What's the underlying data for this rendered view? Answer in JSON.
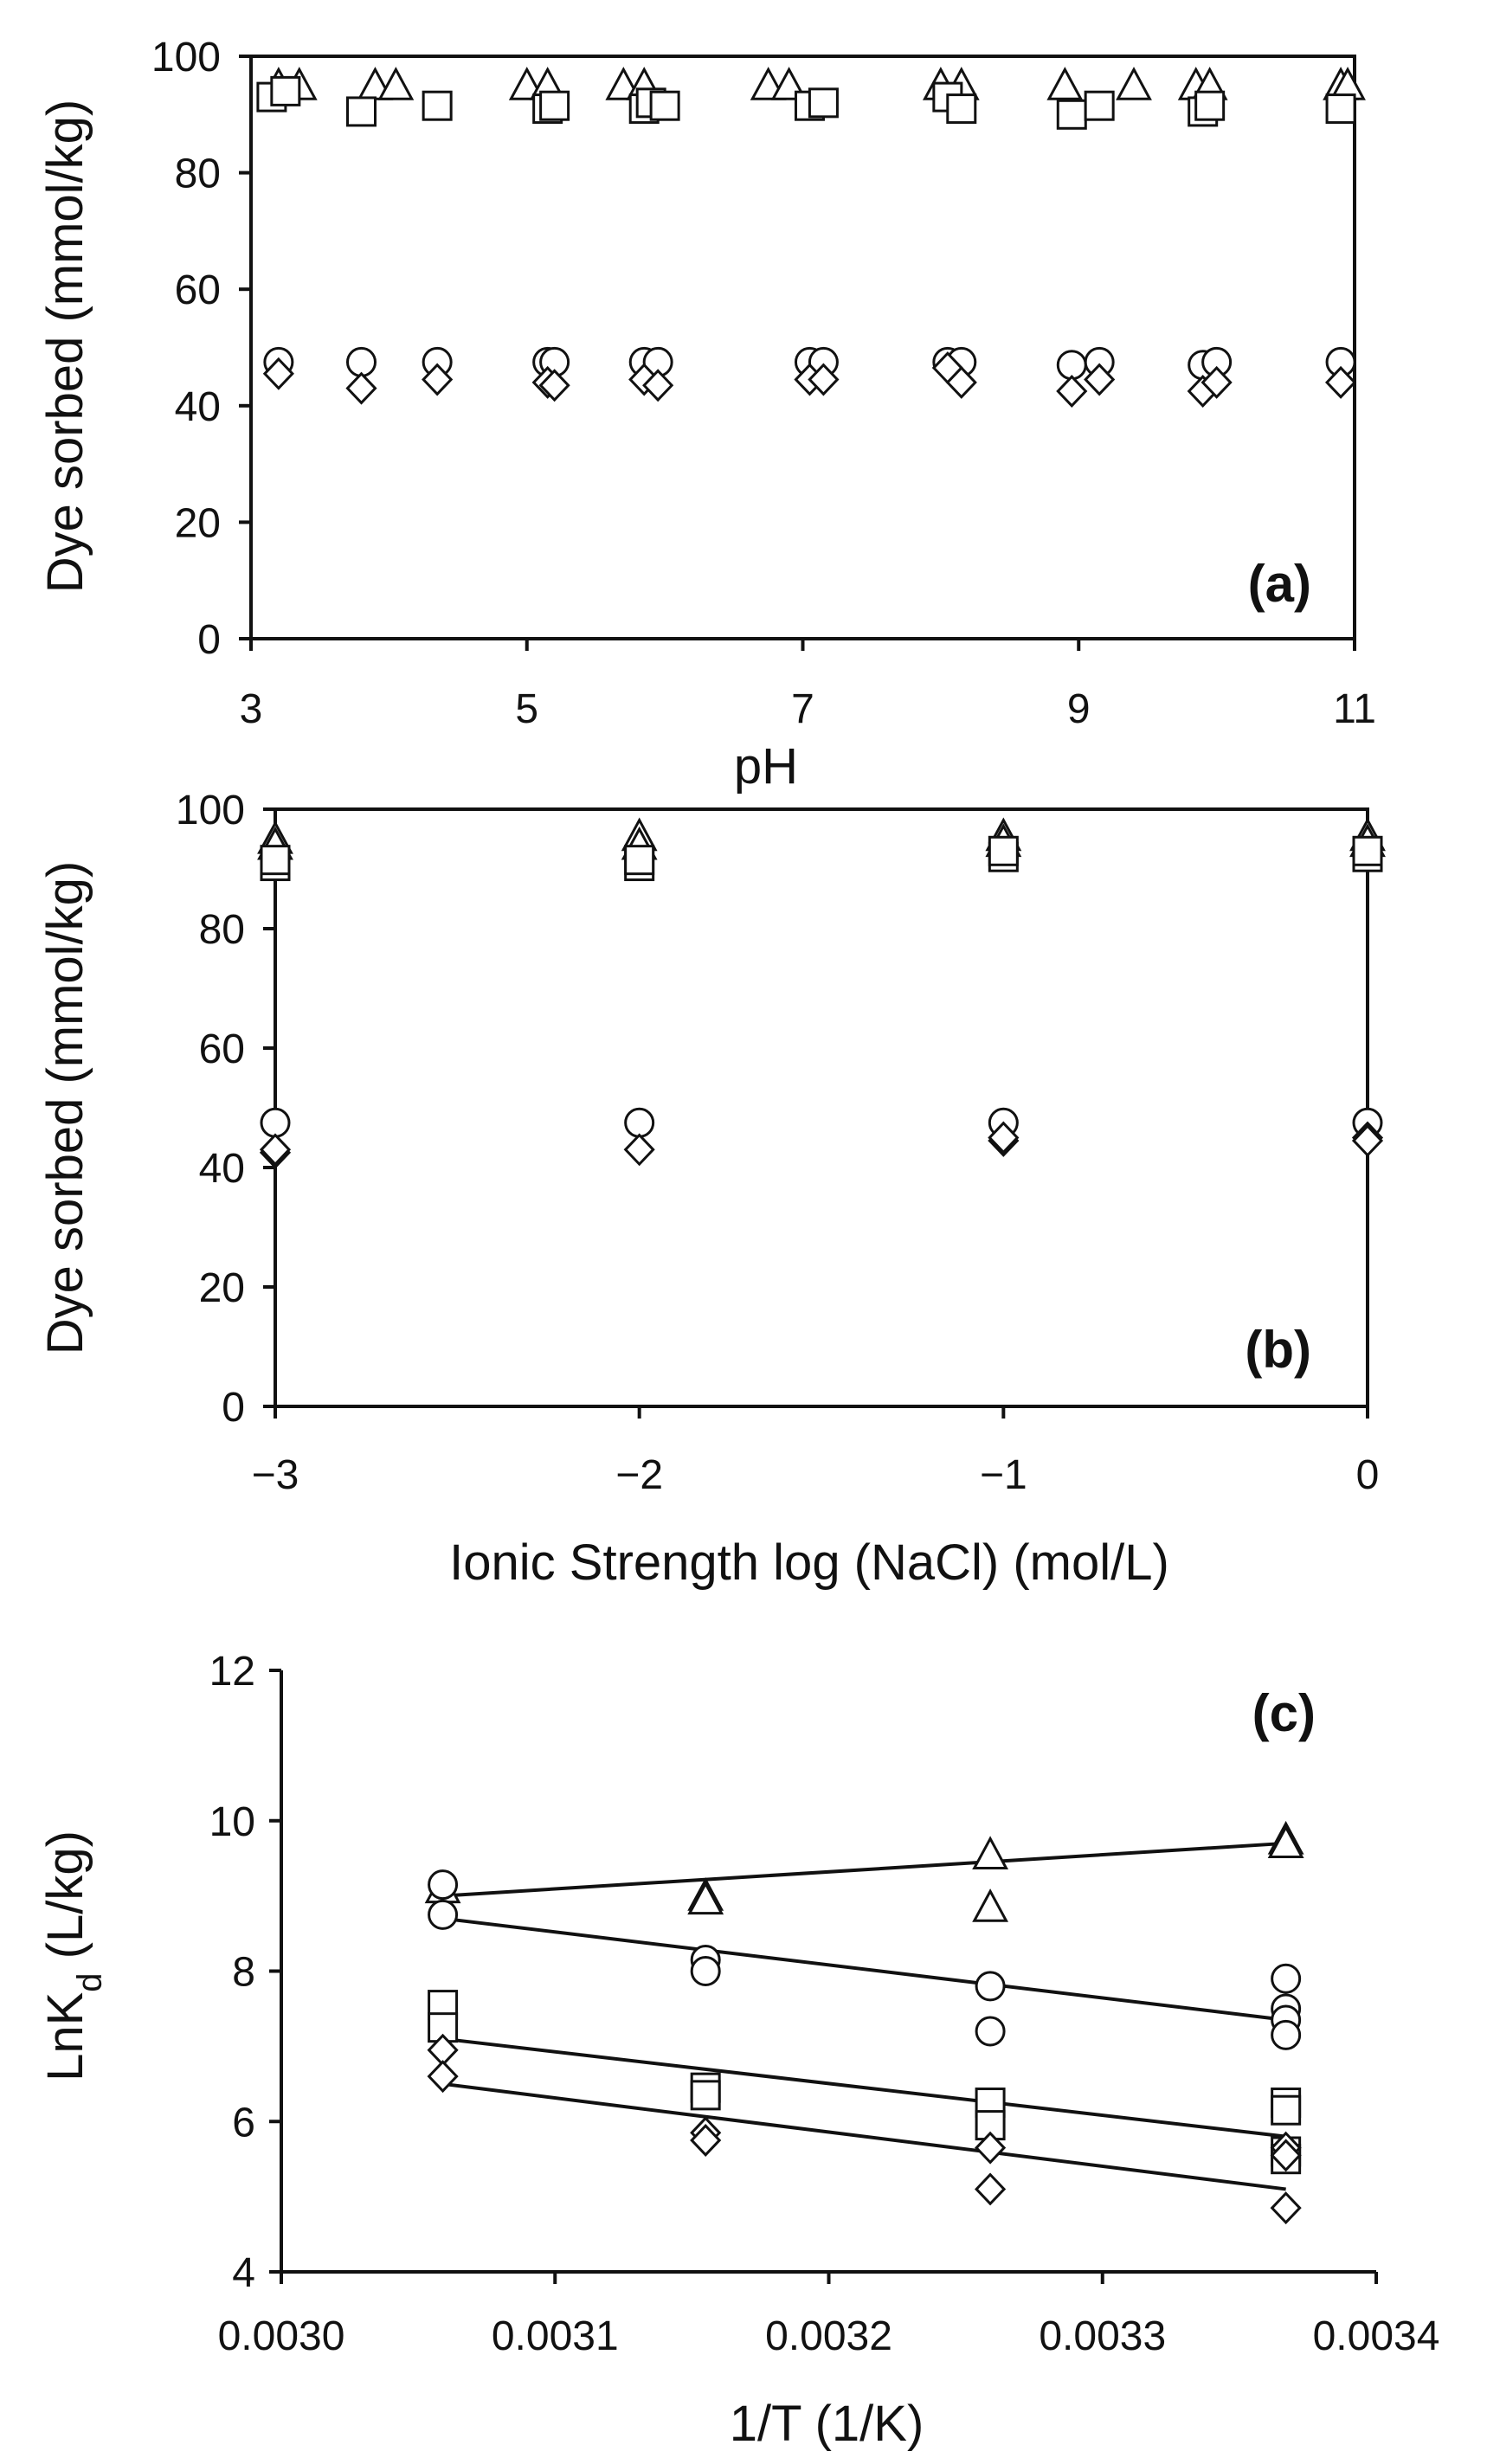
{
  "chart_data": [
    {
      "type": "scatter",
      "panel_label": "(a)",
      "xlabel": "pH",
      "ylabel": "Dye sorbed (mmol/kg)",
      "xlim": [
        3,
        11
      ],
      "ylim": [
        0,
        100
      ],
      "xticks": [
        "3",
        "5",
        "7",
        "9",
        "11"
      ],
      "xtick_values": [
        3,
        5,
        7,
        9,
        11
      ],
      "yticks": [
        "0",
        "20",
        "40",
        "60",
        "80",
        "100"
      ],
      "ytick_values": [
        0,
        20,
        40,
        60,
        80,
        100
      ],
      "series": [
        {
          "name": "triangle",
          "marker": "triangle",
          "x": [
            3.2,
            3.35,
            3.9,
            4.05,
            5.0,
            5.15,
            5.7,
            5.85,
            6.75,
            6.9,
            8.0,
            8.15,
            8.9,
            9.4,
            9.85,
            9.95,
            10.9,
            10.95
          ],
          "y": [
            95,
            95,
            95,
            95,
            95,
            95,
            95,
            95,
            95,
            95,
            95,
            95,
            95,
            95,
            95,
            95,
            95,
            95
          ]
        },
        {
          "name": "square",
          "marker": "square",
          "x": [
            3.15,
            3.25,
            3.8,
            4.35,
            5.15,
            5.2,
            5.85,
            5.9,
            6.0,
            7.05,
            7.15,
            8.05,
            8.15,
            8.95,
            9.15,
            9.9,
            9.95,
            10.9
          ],
          "y": [
            93,
            94,
            90.5,
            91.5,
            91,
            91.5,
            91,
            92,
            91.5,
            91.5,
            92,
            93,
            91,
            90,
            91.5,
            90.5,
            91.5,
            91
          ]
        },
        {
          "name": "circle",
          "marker": "circle",
          "x": [
            3.2,
            3.8,
            4.35,
            5.15,
            5.2,
            5.85,
            5.95,
            7.05,
            7.15,
            8.05,
            8.15,
            8.95,
            9.15,
            9.9,
            10.0,
            10.9
          ],
          "y": [
            47.5,
            47.5,
            47.5,
            47.5,
            47.5,
            47.5,
            47.5,
            47.5,
            47.5,
            47.5,
            47.5,
            47,
            47.5,
            47,
            47.5,
            47.5
          ]
        },
        {
          "name": "diamond",
          "marker": "diamond",
          "x": [
            3.2,
            3.8,
            4.35,
            5.15,
            5.2,
            5.85,
            5.95,
            7.05,
            7.15,
            8.05,
            8.15,
            8.95,
            9.15,
            9.9,
            10.0,
            10.9
          ],
          "y": [
            45.5,
            43,
            44.5,
            44,
            43.5,
            44.5,
            43.5,
            44.5,
            44.5,
            46.5,
            44,
            42.5,
            44.5,
            42.5,
            44,
            44
          ]
        }
      ]
    },
    {
      "type": "scatter",
      "panel_label": "(b)",
      "xlabel": "Ionic Strength log (NaCl) (mol/L)",
      "ylabel": "Dye sorbed (mmol/kg)",
      "xlim": [
        -3,
        0
      ],
      "ylim": [
        0,
        100
      ],
      "xticks": [
        "−3",
        "−2",
        "−1",
        "0"
      ],
      "xtick_values": [
        -3,
        -2,
        -1,
        0
      ],
      "yticks": [
        "0",
        "20",
        "40",
        "60",
        "80",
        "100"
      ],
      "ytick_values": [
        0,
        20,
        40,
        60,
        80,
        100
      ],
      "series": [
        {
          "name": "triangle",
          "marker": "triangle",
          "x": [
            -3,
            -3,
            -2,
            -2,
            -1,
            -1,
            0,
            0
          ],
          "y": [
            95,
            94,
            95.5,
            94,
            95.5,
            94.5,
            95.5,
            94.5
          ]
        },
        {
          "name": "square",
          "marker": "square",
          "x": [
            -3,
            -3,
            -2,
            -2,
            -1,
            -1,
            0,
            0
          ],
          "y": [
            90.5,
            91.5,
            90.5,
            91.5,
            92,
            93,
            92,
            93
          ]
        },
        {
          "name": "circle",
          "marker": "circle",
          "x": [
            -3,
            -2,
            -1,
            0
          ],
          "y": [
            47.5,
            47.5,
            47.5,
            47.5
          ]
        },
        {
          "name": "diamond",
          "marker": "diamond",
          "x": [
            -3,
            -3,
            -2,
            -1,
            -1,
            0,
            0
          ],
          "y": [
            42.5,
            43,
            43,
            44.5,
            45,
            45,
            44.5
          ]
        }
      ]
    },
    {
      "type": "scatter",
      "panel_label": "(c)",
      "xlabel": "1/T (1/K)",
      "ylabel": "LnK",
      "ylabel_sub": "d",
      "ylabel_suffix": " (L/kg)",
      "xlim": [
        0.003,
        0.0034
      ],
      "ylim": [
        4,
        12
      ],
      "xticks": [
        "0.0030",
        "0.0031",
        "0.0032",
        "0.0033",
        "0.0034"
      ],
      "xtick_values": [
        0.003,
        0.0031,
        0.0032,
        0.0033,
        0.0034
      ],
      "yticks": [
        "4",
        "6",
        "8",
        "10",
        "12"
      ],
      "ytick_values": [
        4,
        6,
        8,
        10,
        12
      ],
      "series": [
        {
          "name": "triangle",
          "marker": "triangle",
          "x": [
            0.003059,
            0.003155,
            0.003155,
            0.003259,
            0.003259,
            0.003367,
            0.003367
          ],
          "y": [
            9.1,
            9.0,
            8.95,
            9.55,
            8.85,
            9.75,
            9.7
          ],
          "fit": [
            [
              0.003059,
              9.0
            ],
            [
              0.003367,
              9.7
            ]
          ]
        },
        {
          "name": "circle",
          "marker": "circle",
          "x": [
            0.003059,
            0.003059,
            0.003155,
            0.003155,
            0.003259,
            0.003259,
            0.003367,
            0.003367,
            0.003367,
            0.003367
          ],
          "y": [
            9.15,
            8.75,
            8.15,
            8.0,
            7.8,
            7.2,
            7.9,
            7.5,
            7.35,
            7.15
          ],
          "fit": [
            [
              0.003059,
              8.7
            ],
            [
              0.003367,
              7.35
            ]
          ]
        },
        {
          "name": "square",
          "marker": "square",
          "x": [
            0.003059,
            0.003059,
            0.003155,
            0.003155,
            0.003259,
            0.003259,
            0.003367,
            0.003367,
            0.003367,
            0.003367
          ],
          "y": [
            7.55,
            7.25,
            6.45,
            6.35,
            6.25,
            5.95,
            6.25,
            6.15,
            5.6,
            5.5
          ],
          "fit": [
            [
              0.003059,
              7.1
            ],
            [
              0.003367,
              5.8
            ]
          ]
        },
        {
          "name": "diamond",
          "marker": "diamond",
          "x": [
            0.003059,
            0.003059,
            0.003155,
            0.003155,
            0.003259,
            0.003259,
            0.003367,
            0.003367,
            0.003367
          ],
          "y": [
            6.95,
            6.6,
            5.85,
            5.75,
            5.65,
            5.1,
            5.65,
            5.55,
            4.85
          ],
          "fit": [
            [
              0.003059,
              6.5
            ],
            [
              0.003367,
              5.1
            ]
          ]
        }
      ]
    }
  ]
}
